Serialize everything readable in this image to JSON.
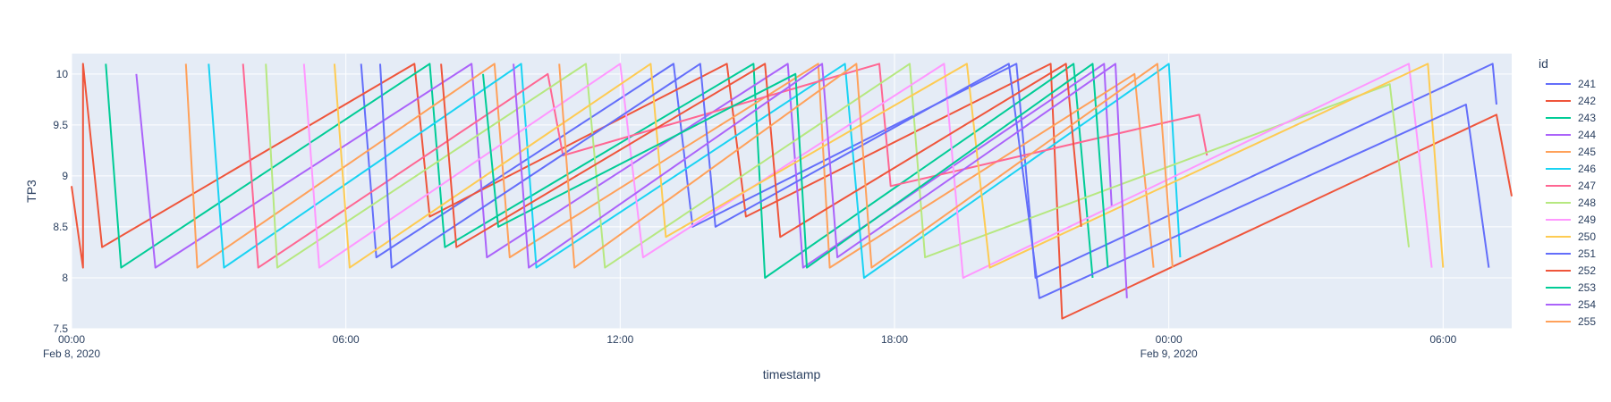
{
  "chart_data": {
    "type": "line",
    "title": "",
    "xlabel": "timestamp",
    "ylabel": "TP3",
    "x_axis": {
      "type": "date",
      "range": [
        "2020-02-08 00:00",
        "2020-02-09 07:30"
      ],
      "ticks": [
        "2020-02-08 00:00",
        "2020-02-08 06:00",
        "2020-02-08 12:00",
        "2020-02-08 18:00",
        "2020-02-09 00:00",
        "2020-02-09 06:00"
      ],
      "tick_labels": [
        "00:00",
        "06:00",
        "12:00",
        "18:00",
        "00:00",
        "06:00"
      ],
      "date_labels": [
        "Feb 8, 2020",
        "",
        "",
        "",
        "Feb 9, 2020",
        ""
      ]
    },
    "y_axis": {
      "range": [
        7.5,
        10.2
      ],
      "ticks": [
        7.5,
        8,
        8.5,
        9,
        9.5,
        10
      ],
      "tick_labels": [
        "7.5",
        "8",
        "8.5",
        "9",
        "9.5",
        "10"
      ]
    },
    "grid": true,
    "plot_background": "#e5ecf6",
    "legend": {
      "title": "id",
      "placement": "right"
    },
    "series": [
      {
        "name": "241",
        "color": "#636efa",
        "points": [
          [
            "2020-02-08 06:20",
            10.1
          ],
          [
            "2020-02-08 06:40",
            8.2
          ],
          [
            "2020-02-08 13:10",
            10.1
          ],
          [
            "2020-02-08 13:35",
            8.5
          ],
          [
            "2020-02-08 20:40",
            10.1
          ],
          [
            "2020-02-08 21:05",
            8.0
          ],
          [
            "2020-02-09 07:05",
            10.1
          ],
          [
            "2020-02-09 07:10",
            9.7
          ]
        ]
      },
      {
        "name": "242",
        "color": "#ef553b",
        "points": [
          [
            "2020-02-08 00:00",
            8.9
          ],
          [
            "2020-02-08 00:15",
            8.1
          ],
          [
            "2020-02-08 00:15",
            10.1
          ],
          [
            "2020-02-08 00:40",
            8.3
          ],
          [
            "2020-02-08 07:30",
            10.1
          ],
          [
            "2020-02-08 07:50",
            8.6
          ],
          [
            "2020-02-08 14:20",
            10.1
          ],
          [
            "2020-02-08 14:45",
            8.6
          ],
          [
            "2020-02-08 21:25",
            10.1
          ],
          [
            "2020-02-08 21:40",
            7.6
          ],
          [
            "2020-02-09 07:10",
            9.6
          ],
          [
            "2020-02-09 07:30",
            8.8
          ]
        ]
      },
      {
        "name": "243",
        "color": "#00cc96",
        "points": [
          [
            "2020-02-08 00:45",
            10.1
          ],
          [
            "2020-02-08 01:05",
            8.1
          ],
          [
            "2020-02-08 07:50",
            10.1
          ],
          [
            "2020-02-08 08:10",
            8.3
          ],
          [
            "2020-02-08 14:55",
            10.1
          ],
          [
            "2020-02-08 15:10",
            8.0
          ],
          [
            "2020-02-08 21:55",
            10.1
          ],
          [
            "2020-02-08 22:20",
            8.0
          ]
        ]
      },
      {
        "name": "244",
        "color": "#ab63fa",
        "points": [
          [
            "2020-02-08 01:25",
            10.0
          ],
          [
            "2020-02-08 01:50",
            8.1
          ],
          [
            "2020-02-08 08:45",
            10.1
          ],
          [
            "2020-02-08 09:05",
            8.2
          ],
          [
            "2020-02-08 15:40",
            10.1
          ],
          [
            "2020-02-08 16:00",
            8.1
          ],
          [
            "2020-02-08 22:35",
            10.1
          ],
          [
            "2020-02-08 22:45",
            8.7
          ]
        ]
      },
      {
        "name": "245",
        "color": "#ffa15a",
        "points": [
          [
            "2020-02-08 02:30",
            10.1
          ],
          [
            "2020-02-08 02:45",
            8.1
          ],
          [
            "2020-02-08 09:15",
            10.1
          ],
          [
            "2020-02-08 09:35",
            8.2
          ],
          [
            "2020-02-08 16:20",
            10.1
          ],
          [
            "2020-02-08 16:35",
            8.1
          ],
          [
            "2020-02-08 23:15",
            10.0
          ],
          [
            "2020-02-08 23:40",
            8.1
          ]
        ]
      },
      {
        "name": "246",
        "color": "#19d3f3",
        "points": [
          [
            "2020-02-08 03:00",
            10.1
          ],
          [
            "2020-02-08 03:20",
            8.1
          ],
          [
            "2020-02-08 09:50",
            10.1
          ],
          [
            "2020-02-08 10:10",
            8.1
          ],
          [
            "2020-02-08 16:55",
            10.1
          ],
          [
            "2020-02-08 17:20",
            8.0
          ],
          [
            "2020-02-09 00:00",
            10.1
          ],
          [
            "2020-02-09 00:15",
            8.2
          ]
        ]
      },
      {
        "name": "247",
        "color": "#ff6692",
        "points": [
          [
            "2020-02-08 03:45",
            10.1
          ],
          [
            "2020-02-08 04:05",
            8.1
          ],
          [
            "2020-02-08 10:25",
            10.0
          ],
          [
            "2020-02-08 10:45",
            9.2
          ],
          [
            "2020-02-08 17:40",
            10.1
          ],
          [
            "2020-02-08 17:55",
            8.9
          ],
          [
            "2020-02-09 00:40",
            9.6
          ],
          [
            "2020-02-09 00:50",
            9.2
          ]
        ]
      },
      {
        "name": "248",
        "color": "#b6e880",
        "points": [
          [
            "2020-02-08 04:15",
            10.1
          ],
          [
            "2020-02-08 04:30",
            8.1
          ],
          [
            "2020-02-08 11:15",
            10.1
          ],
          [
            "2020-02-08 11:40",
            8.1
          ],
          [
            "2020-02-08 18:20",
            10.1
          ],
          [
            "2020-02-08 18:40",
            8.2
          ],
          [
            "2020-02-09 04:50",
            9.9
          ],
          [
            "2020-02-09 05:15",
            8.3
          ]
        ]
      },
      {
        "name": "249",
        "color": "#ff97ff",
        "points": [
          [
            "2020-02-08 05:05",
            10.1
          ],
          [
            "2020-02-08 05:25",
            8.1
          ],
          [
            "2020-02-08 12:00",
            10.1
          ],
          [
            "2020-02-08 12:30",
            8.2
          ],
          [
            "2020-02-08 19:05",
            10.1
          ],
          [
            "2020-02-08 19:30",
            8.0
          ],
          [
            "2020-02-09 05:15",
            10.1
          ],
          [
            "2020-02-09 05:45",
            8.1
          ]
        ]
      },
      {
        "name": "250",
        "color": "#fecb52",
        "points": [
          [
            "2020-02-08 05:45",
            10.1
          ],
          [
            "2020-02-08 06:05",
            8.1
          ],
          [
            "2020-02-08 12:40",
            10.1
          ],
          [
            "2020-02-08 13:00",
            8.4
          ],
          [
            "2020-02-08 19:35",
            10.1
          ],
          [
            "2020-02-08 20:05",
            8.1
          ],
          [
            "2020-02-09 05:40",
            10.1
          ],
          [
            "2020-02-09 06:00",
            8.1
          ]
        ]
      },
      {
        "name": "251",
        "color": "#636efa",
        "points": [
          [
            "2020-02-08 06:45",
            10.1
          ],
          [
            "2020-02-08 07:00",
            8.1
          ],
          [
            "2020-02-08 13:45",
            10.1
          ],
          [
            "2020-02-08 14:05",
            8.5
          ],
          [
            "2020-02-08 20:30",
            10.1
          ],
          [
            "2020-02-08 21:10",
            7.8
          ],
          [
            "2020-02-09 06:30",
            9.7
          ],
          [
            "2020-02-09 07:00",
            8.1
          ]
        ]
      },
      {
        "name": "252",
        "color": "#ef553b",
        "points": [
          [
            "2020-02-08 08:05",
            10.1
          ],
          [
            "2020-02-08 08:25",
            8.3
          ],
          [
            "2020-02-08 15:10",
            10.1
          ],
          [
            "2020-02-08 15:30",
            8.4
          ],
          [
            "2020-02-08 21:45",
            10.1
          ],
          [
            "2020-02-08 22:05",
            8.5
          ]
        ]
      },
      {
        "name": "253",
        "color": "#00cc96",
        "points": [
          [
            "2020-02-08 09:00",
            10.0
          ],
          [
            "2020-02-08 09:20",
            8.5
          ],
          [
            "2020-02-08 15:50",
            10.0
          ],
          [
            "2020-02-08 16:05",
            8.1
          ],
          [
            "2020-02-08 22:20",
            10.1
          ],
          [
            "2020-02-08 22:40",
            8.1
          ]
        ]
      },
      {
        "name": "254",
        "color": "#ab63fa",
        "points": [
          [
            "2020-02-08 09:40",
            10.1
          ],
          [
            "2020-02-08 10:00",
            8.1
          ],
          [
            "2020-02-08 16:25",
            10.1
          ],
          [
            "2020-02-08 16:45",
            8.2
          ],
          [
            "2020-02-08 22:50",
            10.1
          ],
          [
            "2020-02-08 23:05",
            7.8
          ]
        ]
      },
      {
        "name": "255",
        "color": "#ffa15a",
        "points": [
          [
            "2020-02-08 10:40",
            10.1
          ],
          [
            "2020-02-08 11:00",
            8.1
          ],
          [
            "2020-02-08 17:10",
            10.1
          ],
          [
            "2020-02-08 17:30",
            8.1
          ],
          [
            "2020-02-08 23:45",
            10.1
          ],
          [
            "2020-02-09 00:05",
            8.1
          ]
        ]
      }
    ]
  }
}
